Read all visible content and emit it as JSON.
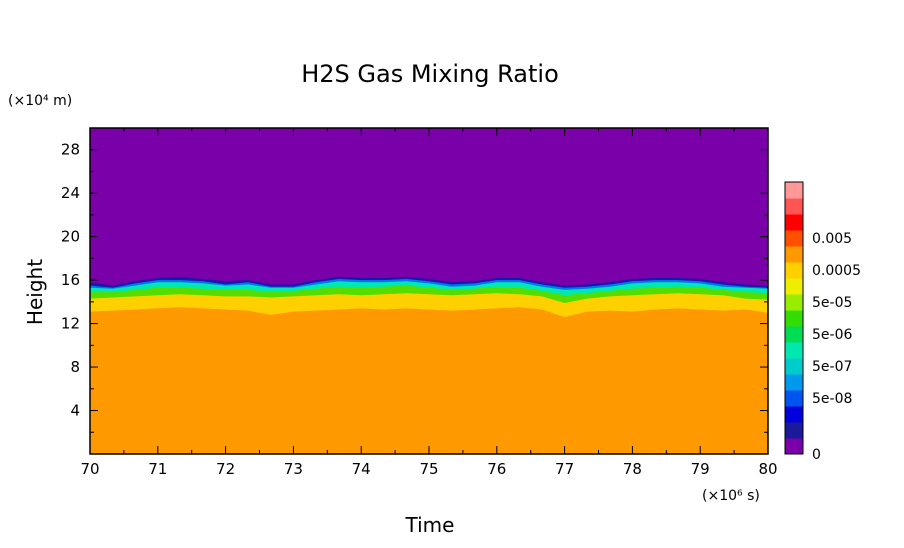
{
  "chart_data": {
    "type": "heatmap",
    "title": "H2S Gas Mixing Ratio",
    "xlabel": "Time",
    "ylabel": "Height",
    "x_unit": "(×10⁶ s)",
    "y_unit": "(×10⁴ m)",
    "xlim": [
      70,
      80
    ],
    "ylim": [
      0,
      30
    ],
    "x_ticks": [
      "70",
      "71",
      "72",
      "73",
      "74",
      "75",
      "76",
      "77",
      "78",
      "79",
      "80"
    ],
    "y_ticks": [
      "4",
      "8",
      "12",
      "16",
      "20",
      "24",
      "28"
    ],
    "colorbar": {
      "labels": [
        "0.005",
        "0.0005",
        "5e-05",
        "5e-06",
        "5e-07",
        "5e-08",
        "0"
      ],
      "colors": [
        "#7a00aa",
        "#1a1a9a",
        "#0000dd",
        "#0055ee",
        "#0099ee",
        "#00cccc",
        "#00e8b0",
        "#00dd55",
        "#33dd00",
        "#99ee00",
        "#eeee00",
        "#ffd000",
        "#ff9900",
        "#ff5000",
        "#ff0000",
        "#ff5555",
        "#ff9999"
      ]
    },
    "layers": [
      {
        "value_band": "0.0005",
        "color": "#ff9900",
        "top_height": [
          13.1,
          13.2,
          13.3,
          13.4,
          13.5,
          13.4,
          13.3,
          13.2,
          12.8,
          13.1,
          13.2,
          13.3,
          13.4,
          13.3,
          13.4,
          13.3,
          13.2,
          13.3,
          13.4,
          13.5,
          13.3,
          12.6,
          13.1,
          13.2,
          13.1,
          13.3,
          13.4,
          13.3,
          13.2,
          13.3,
          13.0
        ]
      },
      {
        "value_band": "5e-05",
        "color": "#ffd000",
        "top_height": [
          14.3,
          14.4,
          14.5,
          14.6,
          14.7,
          14.6,
          14.5,
          14.5,
          14.4,
          14.5,
          14.6,
          14.7,
          14.6,
          14.7,
          14.8,
          14.7,
          14.6,
          14.7,
          14.8,
          14.7,
          14.5,
          13.9,
          14.3,
          14.5,
          14.6,
          14.7,
          14.8,
          14.7,
          14.6,
          14.3,
          14.2
        ]
      },
      {
        "value_band": "5e-06",
        "color": "#55dd00",
        "top_height": [
          14.9,
          14.9,
          15.1,
          15.3,
          15.3,
          15.2,
          15.1,
          15.1,
          14.9,
          15.0,
          15.2,
          15.4,
          15.3,
          15.4,
          15.5,
          15.3,
          15.1,
          15.2,
          15.4,
          15.3,
          15.0,
          14.6,
          14.8,
          15.0,
          15.2,
          15.3,
          15.4,
          15.3,
          15.1,
          14.9,
          14.8
        ]
      },
      {
        "value_band": "5e-07",
        "color": "#00e8b0",
        "top_height": [
          15.3,
          15.2,
          15.5,
          15.8,
          15.8,
          15.7,
          15.5,
          15.6,
          15.3,
          15.3,
          15.6,
          15.9,
          15.8,
          15.8,
          15.9,
          15.7,
          15.4,
          15.5,
          15.8,
          15.8,
          15.4,
          15.1,
          15.2,
          15.4,
          15.7,
          15.8,
          15.8,
          15.7,
          15.4,
          15.3,
          15.2
        ]
      },
      {
        "value_band": "5e-08",
        "color": "#0077ee",
        "top_height": [
          15.5,
          15.3,
          15.7,
          16.0,
          16.0,
          15.9,
          15.6,
          15.8,
          15.4,
          15.4,
          15.8,
          16.1,
          16.0,
          16.0,
          16.1,
          15.9,
          15.6,
          15.7,
          16.0,
          16.0,
          15.6,
          15.3,
          15.4,
          15.6,
          15.9,
          16.0,
          16.0,
          15.9,
          15.6,
          15.4,
          15.3
        ]
      },
      {
        "value_band": "0",
        "color": "#1818aa",
        "top_height": [
          15.8,
          15.5,
          15.9,
          16.2,
          16.3,
          16.1,
          15.9,
          16.0,
          15.6,
          15.6,
          16.0,
          16.3,
          16.2,
          16.2,
          16.3,
          16.1,
          15.8,
          15.9,
          16.2,
          16.2,
          15.8,
          15.5,
          15.6,
          15.8,
          16.1,
          16.2,
          16.2,
          16.1,
          15.8,
          15.6,
          15.5
        ]
      }
    ],
    "background_color": "#7a00aa"
  }
}
